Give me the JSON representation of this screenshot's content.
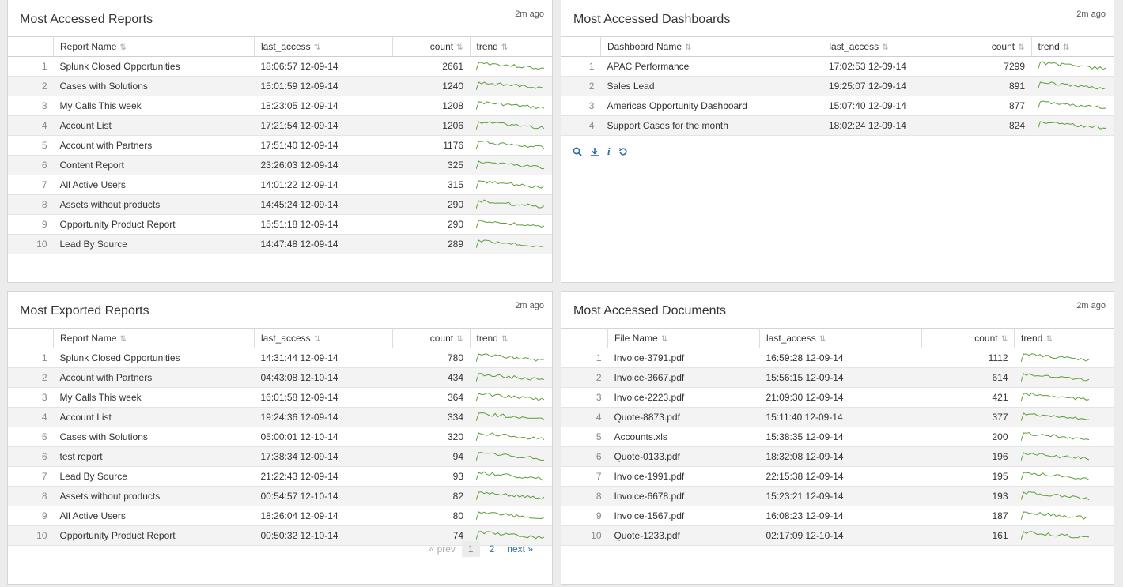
{
  "panels": {
    "reports": {
      "title": "Most Accessed Reports",
      "ago": "2m ago",
      "columns": [
        "",
        "Report Name",
        "last_access",
        "count",
        "trend"
      ],
      "rows": [
        {
          "idx": "1",
          "name": "Splunk Closed Opportunities",
          "last": "18:06:57 12-09-14",
          "count": "2661"
        },
        {
          "idx": "2",
          "name": "Cases with Solutions",
          "last": "15:01:59 12-09-14",
          "count": "1240"
        },
        {
          "idx": "3",
          "name": "My Calls This week",
          "last": "18:23:05 12-09-14",
          "count": "1208"
        },
        {
          "idx": "4",
          "name": "Account List",
          "last": "17:21:54 12-09-14",
          "count": "1206"
        },
        {
          "idx": "5",
          "name": "Account with Partners",
          "last": "17:51:40 12-09-14",
          "count": "1176"
        },
        {
          "idx": "6",
          "name": "Content Report",
          "last": "23:26:03 12-09-14",
          "count": "325"
        },
        {
          "idx": "7",
          "name": "All Active Users",
          "last": "14:01:22 12-09-14",
          "count": "315"
        },
        {
          "idx": "8",
          "name": "Assets without products",
          "last": "14:45:24 12-09-14",
          "count": "290"
        },
        {
          "idx": "9",
          "name": "Opportunity Product Report",
          "last": "15:51:18 12-09-14",
          "count": "290"
        },
        {
          "idx": "10",
          "name": "Lead By Source",
          "last": "14:47:48 12-09-14",
          "count": "289"
        }
      ]
    },
    "dashboards": {
      "title": "Most Accessed Dashboards",
      "ago": "2m ago",
      "columns": [
        "",
        "Dashboard Name",
        "last_access",
        "count",
        "trend"
      ],
      "rows": [
        {
          "idx": "1",
          "name": "APAC Performance",
          "last": "17:02:53 12-09-14",
          "count": "7299"
        },
        {
          "idx": "2",
          "name": "Sales Lead",
          "last": "19:25:07 12-09-14",
          "count": "891"
        },
        {
          "idx": "3",
          "name": "Americas Opportunity Dashboard",
          "last": "15:07:40 12-09-14",
          "count": "877"
        },
        {
          "idx": "4",
          "name": "Support Cases for the month",
          "last": "18:02:24 12-09-14",
          "count": "824"
        }
      ],
      "actions": [
        "search-icon",
        "export-icon",
        "info-icon",
        "refresh-icon"
      ]
    },
    "exported": {
      "title": "Most Exported Reports",
      "ago": "2m ago",
      "columns": [
        "",
        "Report Name",
        "last_access",
        "count",
        "trend"
      ],
      "rows": [
        {
          "idx": "1",
          "name": "Splunk Closed Opportunities",
          "last": "14:31:44 12-09-14",
          "count": "780"
        },
        {
          "idx": "2",
          "name": "Account with Partners",
          "last": "04:43:08 12-10-14",
          "count": "434"
        },
        {
          "idx": "3",
          "name": "My Calls This week",
          "last": "16:01:58 12-09-14",
          "count": "364"
        },
        {
          "idx": "4",
          "name": "Account List",
          "last": "19:24:36 12-09-14",
          "count": "334"
        },
        {
          "idx": "5",
          "name": "Cases with Solutions",
          "last": "05:00:01 12-10-14",
          "count": "320"
        },
        {
          "idx": "6",
          "name": "test report",
          "last": "17:38:34 12-09-14",
          "count": "94"
        },
        {
          "idx": "7",
          "name": "Lead By Source",
          "last": "21:22:43 12-09-14",
          "count": "93"
        },
        {
          "idx": "8",
          "name": "Assets without products",
          "last": "00:54:57 12-10-14",
          "count": "82"
        },
        {
          "idx": "9",
          "name": "All Active Users",
          "last": "18:26:04 12-09-14",
          "count": "80"
        },
        {
          "idx": "10",
          "name": "Opportunity Product Report",
          "last": "00:50:32 12-10-14",
          "count": "74"
        }
      ],
      "pager": {
        "prev": "« prev",
        "pages": [
          "1",
          "2"
        ],
        "active": "1",
        "next": "next »"
      }
    },
    "documents": {
      "title": "Most Accessed Documents",
      "ago": "2m ago",
      "columns": [
        "",
        "File Name",
        "last_access",
        "count",
        "trend"
      ],
      "rows": [
        {
          "idx": "1",
          "name": "Invoice-3791.pdf",
          "last": "16:59:28 12-09-14",
          "count": "1112"
        },
        {
          "idx": "2",
          "name": "Invoice-3667.pdf",
          "last": "15:56:15 12-09-14",
          "count": "614"
        },
        {
          "idx": "3",
          "name": "Invoice-2223.pdf",
          "last": "21:09:30 12-09-14",
          "count": "421"
        },
        {
          "idx": "4",
          "name": "Quote-8873.pdf",
          "last": "15:11:40 12-09-14",
          "count": "377"
        },
        {
          "idx": "5",
          "name": "Accounts.xls",
          "last": "15:38:35 12-09-14",
          "count": "200"
        },
        {
          "idx": "6",
          "name": "Quote-0133.pdf",
          "last": "18:32:08 12-09-14",
          "count": "196"
        },
        {
          "idx": "7",
          "name": "Invoice-1991.pdf",
          "last": "22:15:38 12-09-14",
          "count": "195"
        },
        {
          "idx": "8",
          "name": "Invoice-6678.pdf",
          "last": "15:23:21 12-09-14",
          "count": "193"
        },
        {
          "idx": "9",
          "name": "Invoice-1567.pdf",
          "last": "16:08:23 12-09-14",
          "count": "187"
        },
        {
          "idx": "10",
          "name": "Quote-1233.pdf",
          "last": "02:17:09 12-10-14",
          "count": "161"
        }
      ]
    }
  },
  "colors": {
    "sparkline": "#5a9e3a",
    "link": "#2e6da4"
  }
}
